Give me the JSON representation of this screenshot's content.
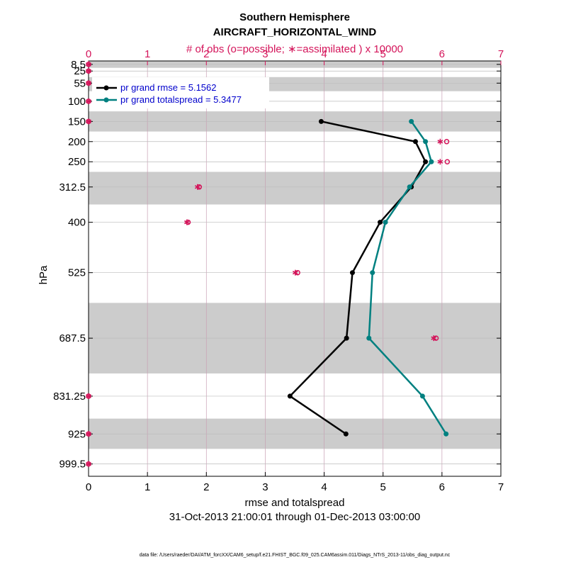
{
  "chart_data": {
    "type": "line",
    "title": "Southern Hemisphere",
    "subtitle": "AIRCRAFT_HORIZONTAL_WIND",
    "top_axis_label": "# of obs (o=possible; ∗=assimilated ) x 10000",
    "xlabel": "rmse and totalspread",
    "ylabel": "hPa",
    "date_range": "31-Oct-2013 21:00:01 through 01-Dec-2013 03:00:00",
    "footer": "data file: /Users/raeder/DAI/ATM_forcXX/CAM6_setup/f.e21.FHIST_BGC.f09_025.CAM6assim.011/Diags_NTrS_2013-11/obs_diag_output.nc",
    "xlim": [
      0,
      7
    ],
    "xticks": [
      "0",
      "1",
      "2",
      "3",
      "4",
      "5",
      "6",
      "7"
    ],
    "top_xlim": [
      0,
      7
    ],
    "top_xticks": [
      "0",
      "1",
      "2",
      "3",
      "4",
      "5",
      "6",
      "7"
    ],
    "y_axis": "pressure, inverted",
    "ylim": [
      1030,
      0
    ],
    "levels": [
      8.5,
      25,
      55,
      100,
      150,
      200,
      250,
      312.5,
      400,
      525,
      687.5,
      831.25,
      925,
      999.5
    ],
    "ytick_labels": [
      "8.5",
      "25",
      "55",
      "100",
      "150",
      "200",
      "250",
      "312.5",
      "400",
      "525",
      "687.5",
      "831.25",
      "925",
      "999.5"
    ],
    "bands": [
      [
        0,
        17
      ],
      [
        40,
        75
      ],
      [
        125,
        175
      ],
      [
        275,
        356
      ],
      [
        600,
        775
      ],
      [
        887,
        962
      ]
    ],
    "colors": {
      "rmse": "#000000",
      "spread": "#008080",
      "obs": "#d4145a",
      "band": "#cccccc",
      "grid": "#c8a0b4",
      "legend_text": "#0000cc"
    },
    "series": [
      {
        "name": "pr grand rmse = 5.1562",
        "key": "rmse",
        "marker": "circle",
        "points": [
          [
            3.95,
            150
          ],
          [
            5.55,
            200
          ],
          [
            5.72,
            250
          ],
          [
            5.48,
            312.5
          ],
          [
            4.95,
            400
          ],
          [
            4.48,
            525
          ],
          [
            4.38,
            687.5
          ],
          [
            3.42,
            831.25
          ],
          [
            4.37,
            925
          ]
        ]
      },
      {
        "name": "pr grand totalspread = 5.3477",
        "key": "spread",
        "marker": "circle",
        "points": [
          [
            5.48,
            150
          ],
          [
            5.72,
            200
          ],
          [
            5.82,
            250
          ],
          [
            5.45,
            312.5
          ],
          [
            5.04,
            400
          ],
          [
            4.82,
            525
          ],
          [
            4.76,
            687.5
          ],
          [
            5.67,
            831.25
          ],
          [
            6.07,
            925
          ]
        ]
      }
    ],
    "obs_possible": [
      [
        0.0,
        8.5
      ],
      [
        0.0,
        25
      ],
      [
        0.0,
        55
      ],
      [
        0.0,
        100
      ],
      [
        0.0,
        150
      ],
      [
        6.08,
        200
      ],
      [
        6.09,
        250
      ],
      [
        1.88,
        312.5
      ],
      [
        1.69,
        400
      ],
      [
        3.55,
        525
      ],
      [
        5.9,
        687.5
      ],
      [
        0.0,
        831.25
      ],
      [
        0.0,
        925
      ],
      [
        0.0,
        999.5
      ]
    ],
    "obs_assimilated": [
      [
        0.0,
        8.5
      ],
      [
        0.0,
        25
      ],
      [
        0.0,
        55
      ],
      [
        0.0,
        100
      ],
      [
        0.0,
        150
      ],
      [
        5.97,
        200
      ],
      [
        5.97,
        250
      ],
      [
        1.85,
        312.5
      ],
      [
        1.67,
        400
      ],
      [
        3.51,
        525
      ],
      [
        5.86,
        687.5
      ],
      [
        0.0,
        831.25
      ],
      [
        0.0,
        925
      ],
      [
        0.0,
        999.5
      ]
    ],
    "legend_placement": "top-left",
    "grid": true
  }
}
